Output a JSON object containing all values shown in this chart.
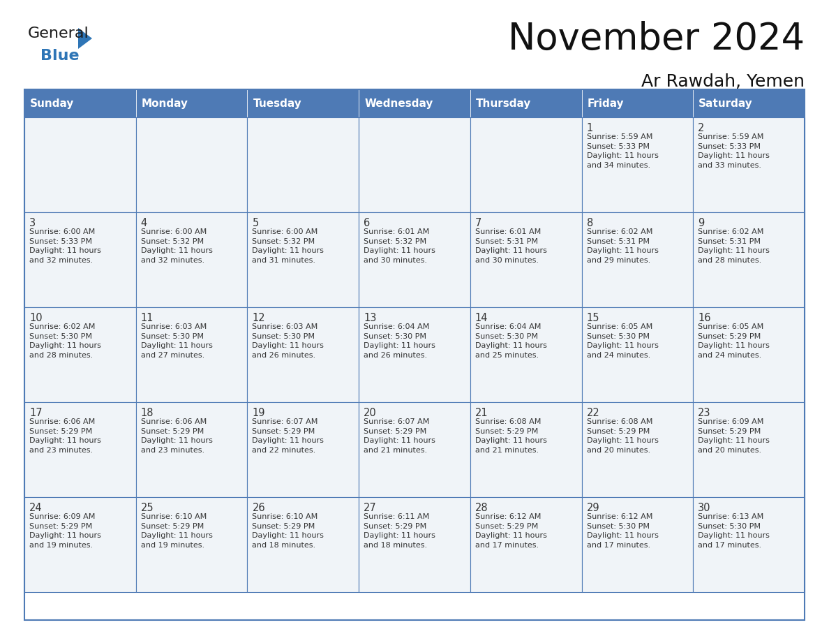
{
  "title": "November 2024",
  "subtitle": "Ar Rawdah, Yemen",
  "days_of_week": [
    "Sunday",
    "Monday",
    "Tuesday",
    "Wednesday",
    "Thursday",
    "Friday",
    "Saturday"
  ],
  "header_bg": "#4E7AB5",
  "header_text_color": "#FFFFFF",
  "cell_bg": "#F0F4F8",
  "border_color": "#4E7AB5",
  "text_color": "#333333",
  "logo_general_color": "#1a1a1a",
  "logo_blue_color": "#2E75B6",
  "fig_width": 11.88,
  "fig_height": 9.18,
  "dpi": 100,
  "weeks": [
    [
      {
        "day": null,
        "info": null
      },
      {
        "day": null,
        "info": null
      },
      {
        "day": null,
        "info": null
      },
      {
        "day": null,
        "info": null
      },
      {
        "day": null,
        "info": null
      },
      {
        "day": 1,
        "info": "Sunrise: 5:59 AM\nSunset: 5:33 PM\nDaylight: 11 hours\nand 34 minutes."
      },
      {
        "day": 2,
        "info": "Sunrise: 5:59 AM\nSunset: 5:33 PM\nDaylight: 11 hours\nand 33 minutes."
      }
    ],
    [
      {
        "day": 3,
        "info": "Sunrise: 6:00 AM\nSunset: 5:33 PM\nDaylight: 11 hours\nand 32 minutes."
      },
      {
        "day": 4,
        "info": "Sunrise: 6:00 AM\nSunset: 5:32 PM\nDaylight: 11 hours\nand 32 minutes."
      },
      {
        "day": 5,
        "info": "Sunrise: 6:00 AM\nSunset: 5:32 PM\nDaylight: 11 hours\nand 31 minutes."
      },
      {
        "day": 6,
        "info": "Sunrise: 6:01 AM\nSunset: 5:32 PM\nDaylight: 11 hours\nand 30 minutes."
      },
      {
        "day": 7,
        "info": "Sunrise: 6:01 AM\nSunset: 5:31 PM\nDaylight: 11 hours\nand 30 minutes."
      },
      {
        "day": 8,
        "info": "Sunrise: 6:02 AM\nSunset: 5:31 PM\nDaylight: 11 hours\nand 29 minutes."
      },
      {
        "day": 9,
        "info": "Sunrise: 6:02 AM\nSunset: 5:31 PM\nDaylight: 11 hours\nand 28 minutes."
      }
    ],
    [
      {
        "day": 10,
        "info": "Sunrise: 6:02 AM\nSunset: 5:30 PM\nDaylight: 11 hours\nand 28 minutes."
      },
      {
        "day": 11,
        "info": "Sunrise: 6:03 AM\nSunset: 5:30 PM\nDaylight: 11 hours\nand 27 minutes."
      },
      {
        "day": 12,
        "info": "Sunrise: 6:03 AM\nSunset: 5:30 PM\nDaylight: 11 hours\nand 26 minutes."
      },
      {
        "day": 13,
        "info": "Sunrise: 6:04 AM\nSunset: 5:30 PM\nDaylight: 11 hours\nand 26 minutes."
      },
      {
        "day": 14,
        "info": "Sunrise: 6:04 AM\nSunset: 5:30 PM\nDaylight: 11 hours\nand 25 minutes."
      },
      {
        "day": 15,
        "info": "Sunrise: 6:05 AM\nSunset: 5:30 PM\nDaylight: 11 hours\nand 24 minutes."
      },
      {
        "day": 16,
        "info": "Sunrise: 6:05 AM\nSunset: 5:29 PM\nDaylight: 11 hours\nand 24 minutes."
      }
    ],
    [
      {
        "day": 17,
        "info": "Sunrise: 6:06 AM\nSunset: 5:29 PM\nDaylight: 11 hours\nand 23 minutes."
      },
      {
        "day": 18,
        "info": "Sunrise: 6:06 AM\nSunset: 5:29 PM\nDaylight: 11 hours\nand 23 minutes."
      },
      {
        "day": 19,
        "info": "Sunrise: 6:07 AM\nSunset: 5:29 PM\nDaylight: 11 hours\nand 22 minutes."
      },
      {
        "day": 20,
        "info": "Sunrise: 6:07 AM\nSunset: 5:29 PM\nDaylight: 11 hours\nand 21 minutes."
      },
      {
        "day": 21,
        "info": "Sunrise: 6:08 AM\nSunset: 5:29 PM\nDaylight: 11 hours\nand 21 minutes."
      },
      {
        "day": 22,
        "info": "Sunrise: 6:08 AM\nSunset: 5:29 PM\nDaylight: 11 hours\nand 20 minutes."
      },
      {
        "day": 23,
        "info": "Sunrise: 6:09 AM\nSunset: 5:29 PM\nDaylight: 11 hours\nand 20 minutes."
      }
    ],
    [
      {
        "day": 24,
        "info": "Sunrise: 6:09 AM\nSunset: 5:29 PM\nDaylight: 11 hours\nand 19 minutes."
      },
      {
        "day": 25,
        "info": "Sunrise: 6:10 AM\nSunset: 5:29 PM\nDaylight: 11 hours\nand 19 minutes."
      },
      {
        "day": 26,
        "info": "Sunrise: 6:10 AM\nSunset: 5:29 PM\nDaylight: 11 hours\nand 18 minutes."
      },
      {
        "day": 27,
        "info": "Sunrise: 6:11 AM\nSunset: 5:29 PM\nDaylight: 11 hours\nand 18 minutes."
      },
      {
        "day": 28,
        "info": "Sunrise: 6:12 AM\nSunset: 5:29 PM\nDaylight: 11 hours\nand 17 minutes."
      },
      {
        "day": 29,
        "info": "Sunrise: 6:12 AM\nSunset: 5:30 PM\nDaylight: 11 hours\nand 17 minutes."
      },
      {
        "day": 30,
        "info": "Sunrise: 6:13 AM\nSunset: 5:30 PM\nDaylight: 11 hours\nand 17 minutes."
      }
    ]
  ]
}
